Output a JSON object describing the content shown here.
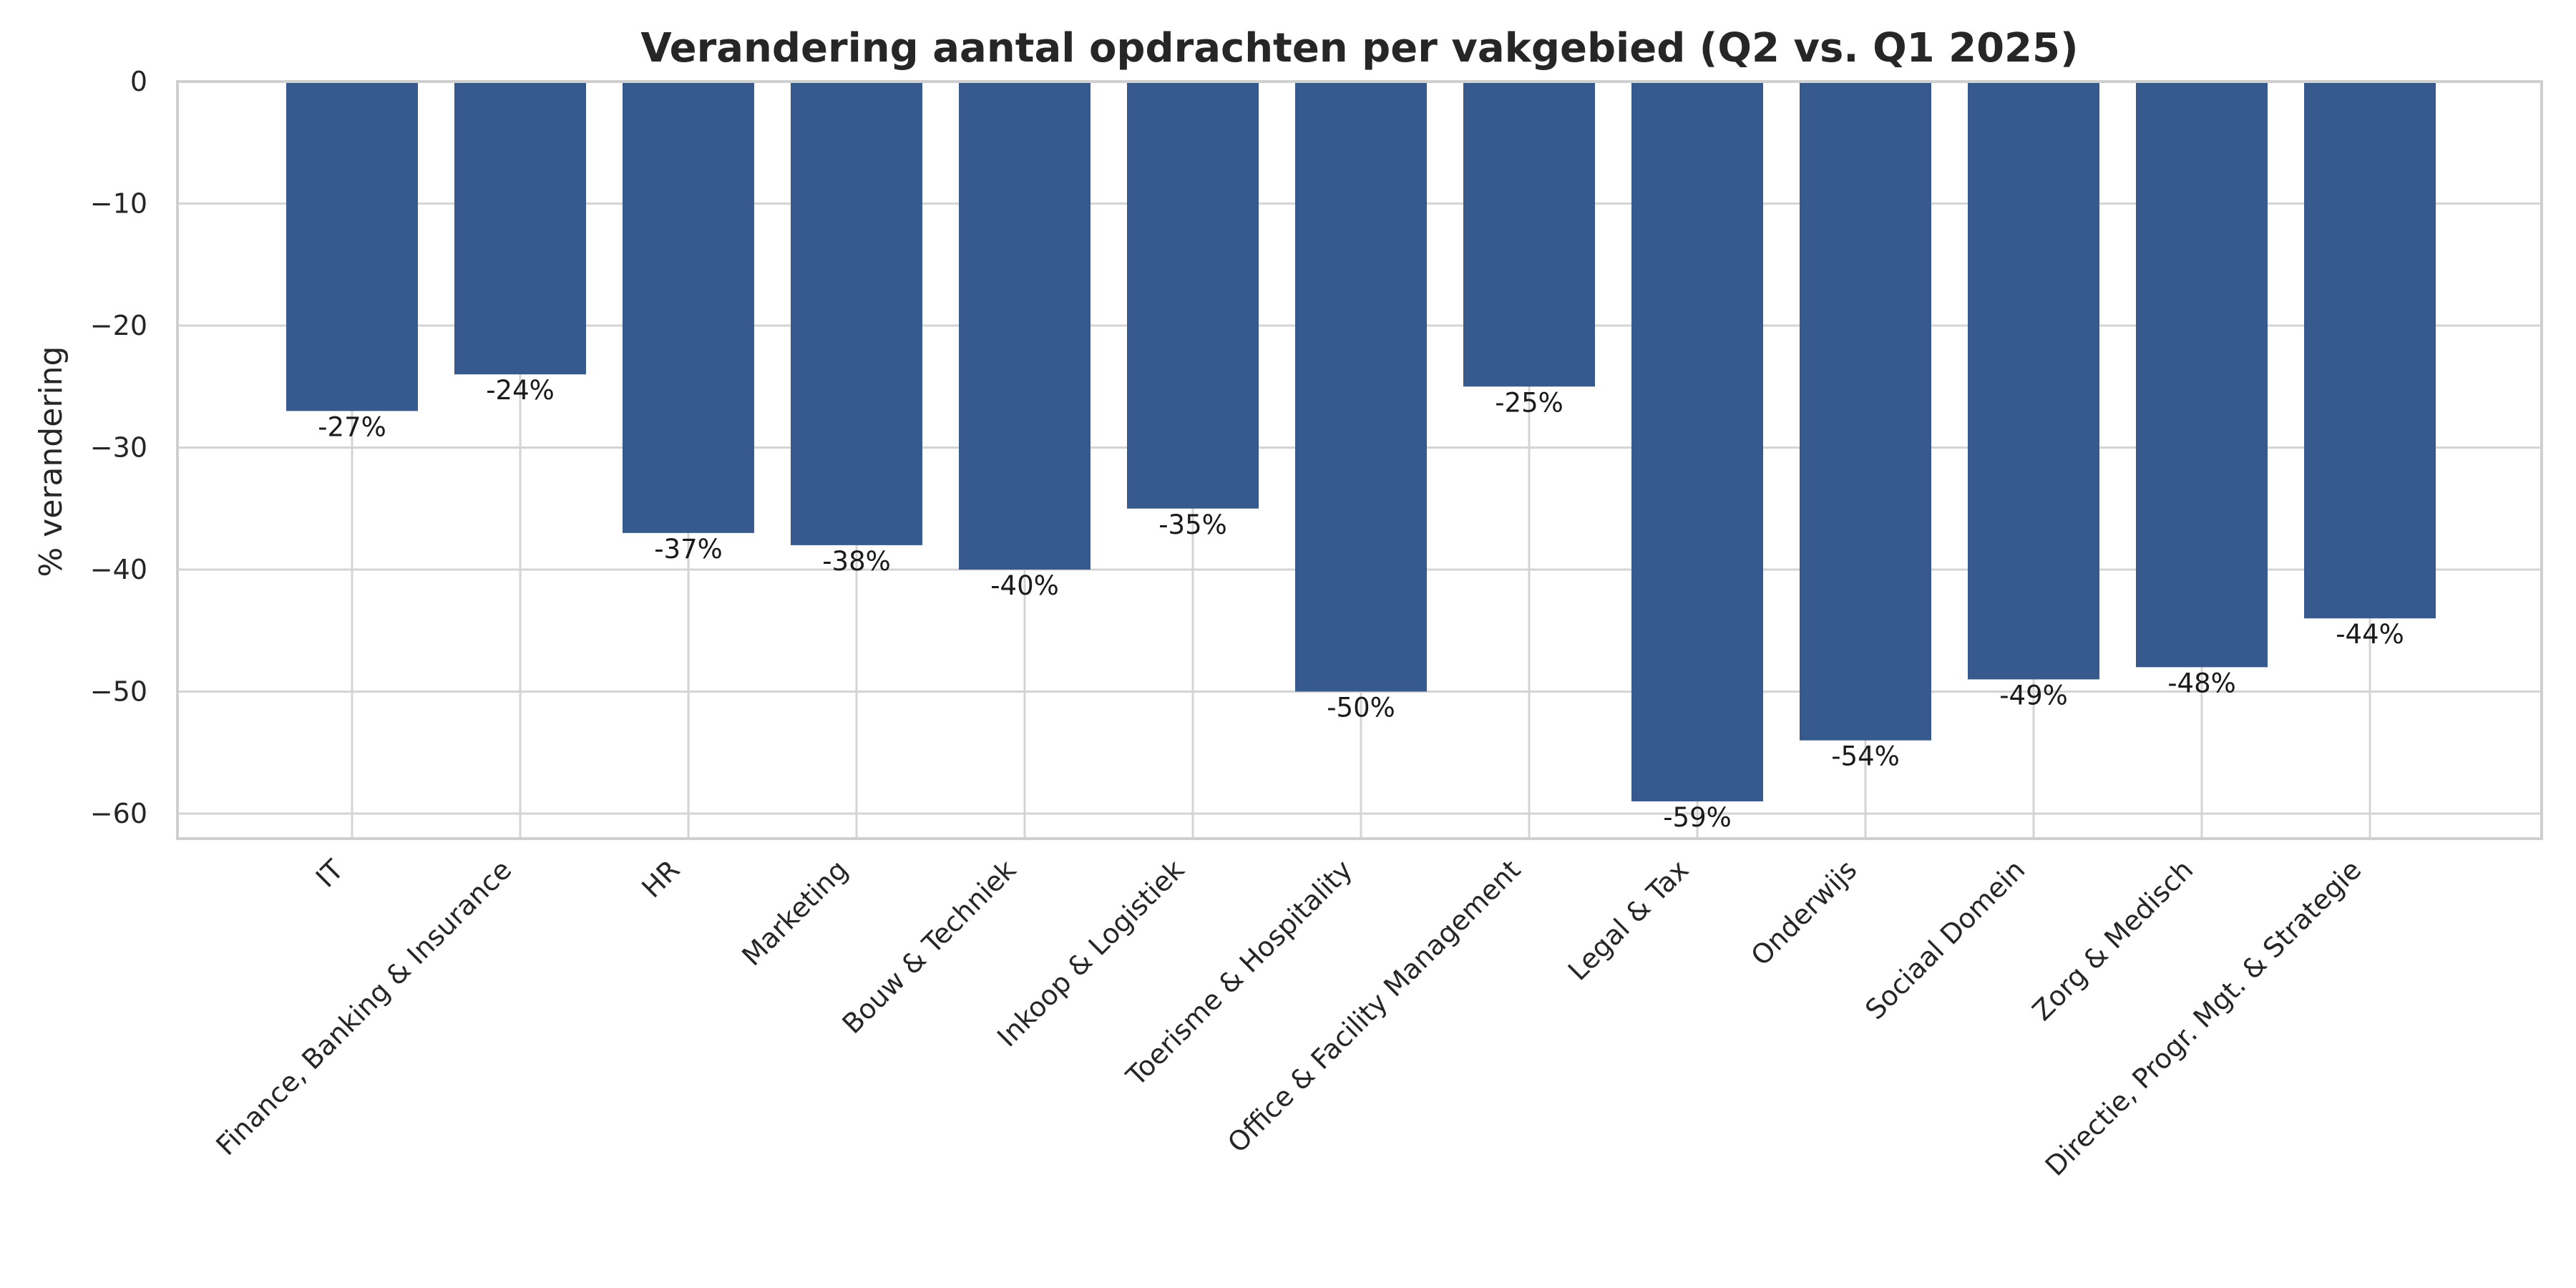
{
  "chart_data": {
    "type": "bar",
    "title": "Verandering aantal opdrachten per vakgebied (Q2 vs. Q1 2025)",
    "xlabel": "",
    "ylabel": "% verandering",
    "ylim": [
      -62,
      0
    ],
    "yticks": [
      "0",
      "−10",
      "−20",
      "−30",
      "−40",
      "−50",
      "−60"
    ],
    "ytick_values": [
      0,
      -10,
      -20,
      -30,
      -40,
      -50,
      -60
    ],
    "grid": true,
    "bar_color": "#365a8e",
    "categories": [
      "IT",
      "Finance, Banking & Insurance",
      "HR",
      "Marketing",
      "Bouw & Techniek",
      "Inkoop & Logistiek",
      "Toerisme & Hospitality",
      "Office & Facility Management",
      "Legal & Tax",
      "Onderwijs",
      "Sociaal Domein",
      "Zorg & Medisch",
      "Directie, Progr. Mgt. & Strategie"
    ],
    "values": [
      -27,
      -24,
      -37,
      -38,
      -40,
      -35,
      -50,
      -25,
      -59,
      -54,
      -49,
      -48,
      -44
    ],
    "data_labels": [
      "-27%",
      "-24%",
      "-37%",
      "-38%",
      "-40%",
      "-35%",
      "-50%",
      "-25%",
      "-59%",
      "-54%",
      "-49%",
      "-48%",
      "-44%"
    ]
  }
}
